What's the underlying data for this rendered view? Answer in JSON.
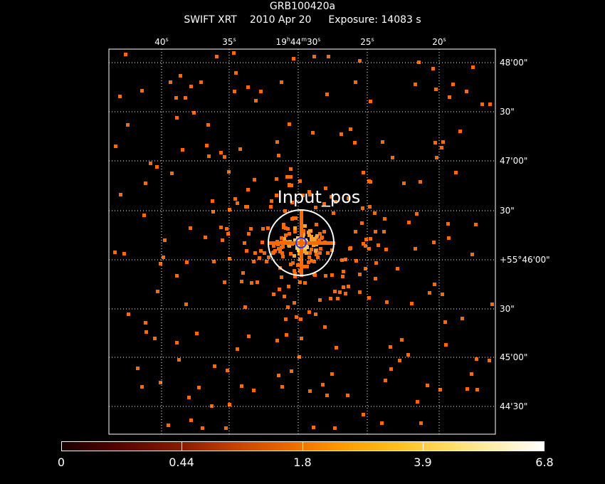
{
  "header": {
    "target": "GRB100420a",
    "instrument": "SWIFT XRT",
    "date": "2010 Apr 20",
    "exposure": "Exposure: 14083 s"
  },
  "ra_axis": {
    "labels": [
      "40s",
      "35s",
      "19h44m30s",
      "25s",
      "20s"
    ]
  },
  "dec_axis": {
    "labels": [
      "48'00\"",
      "30\"",
      "47'00\"",
      "30\"",
      "+55°46'00\"",
      "30\"",
      "45'00\"",
      "44'30\""
    ]
  },
  "markers": {
    "input_label": "Input_pos"
  },
  "colorbar": {
    "labels": [
      "0",
      "0.44",
      "1.8",
      "3.9",
      "6.8"
    ]
  },
  "colors": {
    "background": "#000000",
    "grid": "#ffffff",
    "photon": "#ff6a00",
    "photon_bright": "#ffa030",
    "photon_hot": "#ffd060",
    "circle": "#ffffff",
    "source_circle": "#3333ff"
  }
}
